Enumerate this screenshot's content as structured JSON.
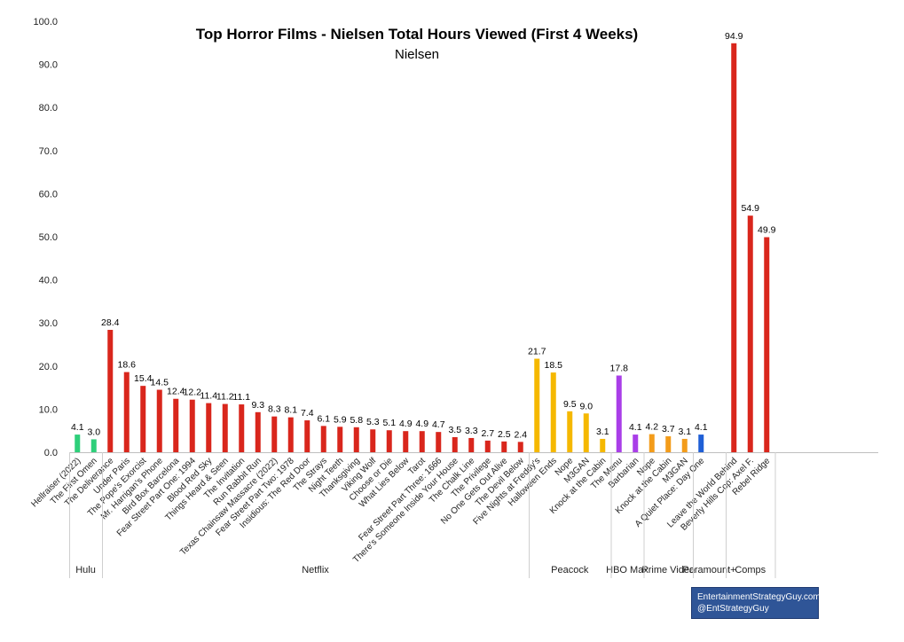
{
  "chart_data": {
    "type": "bar",
    "title": "Top Horror Films - Nielsen Total Hours Viewed (First 4 Weeks)",
    "subtitle": "Nielsen",
    "ylim": [
      0,
      100
    ],
    "yticks": [
      "0.0",
      "10.0",
      "20.0",
      "30.0",
      "40.0",
      "50.0",
      "60.0",
      "70.0",
      "80.0",
      "90.0",
      "100.0"
    ],
    "grid": false,
    "groups": [
      {
        "name": "Hulu",
        "bars": [
          {
            "label": "Hellraiser (2022)",
            "value": 4.1,
            "display": "4.1",
            "color": "#2ecf7a"
          },
          {
            "label": "The First Omen",
            "value": 3.0,
            "display": "3.0",
            "color": "#2ecf7a"
          }
        ]
      },
      {
        "name": "Netflix",
        "bars": [
          {
            "label": "The Deliverance",
            "value": 28.4,
            "display": "28.4",
            "color": "#d9261c"
          },
          {
            "label": "Under Paris",
            "value": 18.6,
            "display": "18.6",
            "color": "#d9261c"
          },
          {
            "label": "The Pope's Exorcist",
            "value": 15.4,
            "display": "15.4",
            "color": "#d9261c"
          },
          {
            "label": "Mr. Harrigan's Phone",
            "value": 14.5,
            "display": "14.5",
            "color": "#d9261c"
          },
          {
            "label": "Bird Box Barcelona",
            "value": 12.4,
            "display": "12.4",
            "color": "#d9261c"
          },
          {
            "label": "Fear Street Part One: 1994",
            "value": 12.2,
            "display": "12.2",
            "color": "#d9261c"
          },
          {
            "label": "Blood Red Sky",
            "value": 11.4,
            "display": "11.4",
            "color": "#d9261c"
          },
          {
            "label": "Things Heard & Seen",
            "value": 11.2,
            "display": "11.2",
            "color": "#d9261c"
          },
          {
            "label": "The Invitation",
            "value": 11.1,
            "display": "11.1",
            "color": "#d9261c"
          },
          {
            "label": "Run Rabbit Run",
            "value": 9.3,
            "display": "9.3",
            "color": "#d9261c"
          },
          {
            "label": "Texas Chainsaw Massacre (2022)",
            "value": 8.3,
            "display": "8.3",
            "color": "#d9261c"
          },
          {
            "label": "Fear Street Part Two: 1978",
            "value": 8.1,
            "display": "8.1",
            "color": "#d9261c"
          },
          {
            "label": "Insidious: The Red Door",
            "value": 7.4,
            "display": "7.4",
            "color": "#d9261c"
          },
          {
            "label": "The Strays",
            "value": 6.1,
            "display": "6.1",
            "color": "#d9261c"
          },
          {
            "label": "Night Teeth",
            "value": 5.9,
            "display": "5.9",
            "color": "#d9261c"
          },
          {
            "label": "Thanksgiving",
            "value": 5.8,
            "display": "5.8",
            "color": "#d9261c"
          },
          {
            "label": "Viking Wolf",
            "value": 5.3,
            "display": "5.3",
            "color": "#d9261c"
          },
          {
            "label": "Choose or Die",
            "value": 5.1,
            "display": "5.1",
            "color": "#d9261c"
          },
          {
            "label": "What Lies Below",
            "value": 4.9,
            "display": "4.9",
            "color": "#d9261c"
          },
          {
            "label": "Tarot",
            "value": 4.9,
            "display": "4.9",
            "color": "#d9261c"
          },
          {
            "label": "Fear Street Part Three: 1666",
            "value": 4.7,
            "display": "4.7",
            "color": "#d9261c"
          },
          {
            "label": "There's Someone Inside Your House",
            "value": 3.5,
            "display": "3.5",
            "color": "#d9261c"
          },
          {
            "label": "The Chalk Line",
            "value": 3.3,
            "display": "3.3",
            "color": "#d9261c"
          },
          {
            "label": "The Privilege",
            "value": 2.7,
            "display": "2.7",
            "color": "#d9261c"
          },
          {
            "label": "No One Gets Out Alive",
            "value": 2.5,
            "display": "2.5",
            "color": "#d9261c"
          },
          {
            "label": "The Devil Below",
            "value": 2.4,
            "display": "2.4",
            "color": "#d9261c"
          }
        ]
      },
      {
        "name": "Peacock",
        "bars": [
          {
            "label": "Five Nights at Freddy's",
            "value": 21.7,
            "display": "21.7",
            "color": "#f5b800"
          },
          {
            "label": "Halloween Ends",
            "value": 18.5,
            "display": "18.5",
            "color": "#f5b800"
          },
          {
            "label": "Nope",
            "value": 9.5,
            "display": "9.5",
            "color": "#f5b800"
          },
          {
            "label": "M3GAN",
            "value": 9.0,
            "display": "9.0",
            "color": "#f5b800"
          },
          {
            "label": "Knock at the Cabin",
            "value": 3.1,
            "display": "3.1",
            "color": "#f5b800"
          }
        ]
      },
      {
        "name": "HBO Max",
        "bars": [
          {
            "label": "The Menu",
            "value": 17.8,
            "display": "17.8",
            "color": "#a93ee8"
          },
          {
            "label": "Barbarian",
            "value": 4.1,
            "display": "4.1",
            "color": "#a93ee8"
          }
        ]
      },
      {
        "name": "Prime Video",
        "bars": [
          {
            "label": "Nope",
            "value": 4.2,
            "display": "4.2",
            "color": "#f39c1a"
          },
          {
            "label": "Knock at the Cabin",
            "value": 3.7,
            "display": "3.7",
            "color": "#f39c1a"
          },
          {
            "label": "M3GAN",
            "value": 3.1,
            "display": "3.1",
            "color": "#f39c1a"
          }
        ]
      },
      {
        "name": "Paramount+",
        "bars": [
          {
            "label": "A Quiet Place: Day One",
            "value": 4.1,
            "display": "4.1",
            "color": "#1f5fd6"
          },
          {
            "label": "",
            "value": 0,
            "display": "",
            "color": "#1f5fd6"
          }
        ]
      },
      {
        "name": "Comps",
        "bars": [
          {
            "label": "Leave the World Behind",
            "value": 94.9,
            "display": "94.9",
            "color": "#d9261c"
          },
          {
            "label": "Beverly Hills Cop: Axel F.",
            "value": 54.9,
            "display": "54.9",
            "color": "#d9261c"
          },
          {
            "label": "Rebel Ridge",
            "value": 49.9,
            "display": "49.9",
            "color": "#d9261c"
          }
        ]
      }
    ]
  },
  "badge": {
    "line1": "EntertainmentStrategyGuy.com",
    "line2": "@EntStrategyGuy"
  }
}
